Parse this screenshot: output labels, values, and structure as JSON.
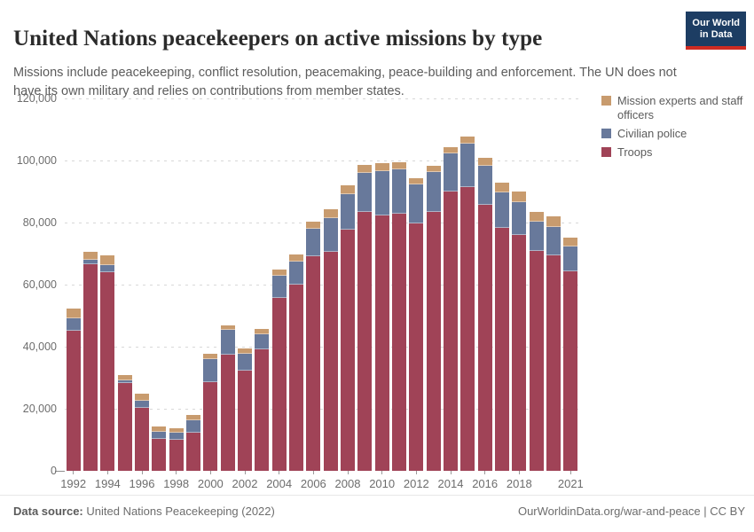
{
  "header": {
    "title": "United Nations peacekeepers on active missions by type",
    "subtitle": "Missions include peacekeeping, conflict resolution, peacemaking, peace-building and enforcement. The UN does not have its own military and relies on contributions from member states.",
    "logo": {
      "line1": "Our World",
      "line2": "in Data",
      "background": "#1d3d63",
      "accent": "#cf2b22"
    }
  },
  "legend": {
    "items": [
      {
        "label": "Mission experts and staff officers",
        "color": "#c89b6e"
      },
      {
        "label": "Civilian police",
        "color": "#68799b"
      },
      {
        "label": "Troops",
        "color": "#a04357"
      }
    ]
  },
  "chart_data": {
    "type": "bar",
    "stacked": true,
    "title": "United Nations peacekeepers on active missions by type",
    "x": [
      1992,
      1993,
      1994,
      1995,
      1996,
      1997,
      1998,
      1999,
      2000,
      2001,
      2002,
      2003,
      2004,
      2005,
      2006,
      2007,
      2008,
      2009,
      2010,
      2011,
      2012,
      2013,
      2014,
      2015,
      2016,
      2017,
      2018,
      2019,
      2020,
      2021
    ],
    "series": [
      {
        "name": "Troops",
        "color": "#a04357",
        "values": [
          45200,
          66700,
          64100,
          28200,
          20300,
          10300,
          10000,
          12400,
          28500,
          37300,
          32400,
          39100,
          55600,
          60100,
          69200,
          70500,
          77700,
          83400,
          82200,
          82900,
          79600,
          83300,
          90000,
          91500,
          85700,
          78200,
          76000,
          70800,
          69300,
          64400
        ]
      },
      {
        "name": "Civilian police",
        "color": "#68799b",
        "values": [
          3900,
          1200,
          2200,
          900,
          2400,
          2400,
          2200,
          3800,
          7600,
          8000,
          5200,
          4800,
          7300,
          7200,
          8700,
          11000,
          11400,
          12600,
          14500,
          14300,
          12600,
          12900,
          12400,
          14000,
          12700,
          11400,
          10500,
          9500,
          9300,
          7800
        ]
      },
      {
        "name": "Mission experts and staff officers",
        "color": "#c89b6e",
        "values": [
          3100,
          2600,
          3000,
          1800,
          2200,
          1600,
          1600,
          1900,
          1500,
          1600,
          1700,
          1700,
          2100,
          2500,
          2400,
          2900,
          2900,
          2700,
          2400,
          2300,
          2100,
          2200,
          2000,
          2100,
          2400,
          3300,
          3600,
          3100,
          3300,
          3000
        ]
      }
    ],
    "ylim": [
      0,
      120000
    ],
    "y_ticks": [
      0,
      20000,
      40000,
      60000,
      80000,
      100000,
      120000
    ],
    "y_tick_labels": [
      "0",
      "20,000",
      "40,000",
      "60,000",
      "80,000",
      "100,000",
      "120,000"
    ],
    "x_ticks": [
      1992,
      1994,
      1996,
      1998,
      2000,
      2002,
      2004,
      2006,
      2008,
      2010,
      2012,
      2014,
      2016,
      2018,
      2021
    ],
    "x_tick_labels": [
      "1992",
      "1994",
      "1996",
      "1998",
      "2000",
      "2002",
      "2004",
      "2006",
      "2008",
      "2010",
      "2012",
      "2014",
      "2016",
      "2018",
      "2021"
    ],
    "grid": "horizontal-dashed",
    "legend_position": "right"
  },
  "footer": {
    "source_label": "Data source:",
    "source_value": "United Nations Peacekeeping (2022)",
    "credit": "OurWorldinData.org/war-and-peace | CC BY"
  }
}
